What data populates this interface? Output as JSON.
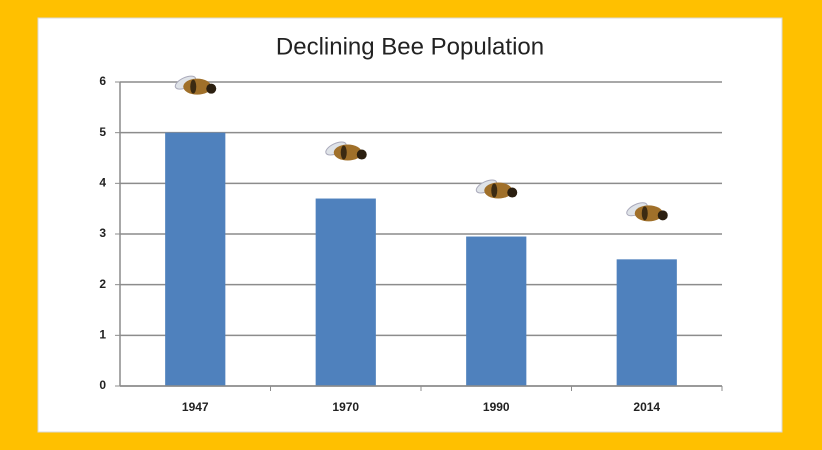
{
  "chart_data": {
    "type": "bar",
    "title": "Declining Bee Population",
    "categories": [
      "1947",
      "1970",
      "1990",
      "2014"
    ],
    "values": [
      5,
      3.7,
      2.95,
      2.5
    ],
    "color": "#4f81bd",
    "ylim": [
      0,
      6
    ],
    "yticks": [
      0,
      1,
      2,
      3,
      4,
      5,
      6
    ],
    "grid": true
  }
}
